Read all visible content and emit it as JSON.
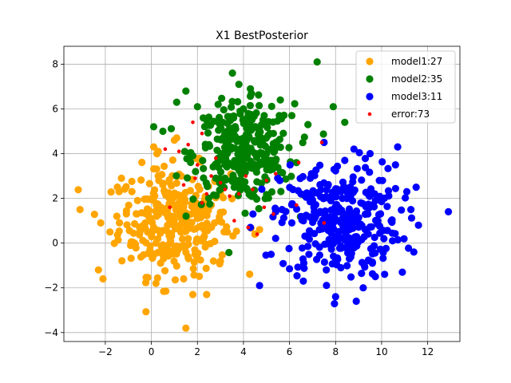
{
  "chart_data": {
    "type": "scatter",
    "title": "X1 BestPosterior",
    "xlabel": "",
    "ylabel": "",
    "xlim": [
      -3.8,
      13.4
    ],
    "ylim": [
      -4.4,
      8.8
    ],
    "x_ticks": [
      -2,
      0,
      2,
      4,
      6,
      8,
      10,
      12
    ],
    "y_ticks": [
      -4,
      -2,
      0,
      2,
      4,
      6,
      8
    ],
    "grid": true,
    "legend_position": "top-right",
    "colors": {
      "model1": "#ffa500",
      "model2": "#008000",
      "model3": "#0000ff",
      "error": "#ff0000"
    },
    "series": [
      {
        "name": "model1:27",
        "color": "#ffa500",
        "marker": "circle",
        "center": [
          1.0,
          1.0
        ],
        "spread": [
          1.2,
          1.2
        ],
        "points": [
          [
            -3.1,
            1.5
          ],
          [
            -2.3,
            -1.2
          ],
          [
            -2.1,
            -1.6
          ],
          [
            -2.2,
            0.9
          ],
          [
            -1.8,
            0.5
          ],
          [
            -1.3,
            2.9
          ],
          [
            0.1,
            4.3
          ],
          [
            0.3,
            4.1
          ],
          [
            1.5,
            -3.8
          ],
          [
            1.8,
            -2.3
          ],
          [
            2.4,
            -2.3
          ],
          [
            1.4,
            -1.6
          ],
          [
            0.2,
            -1.8
          ],
          [
            3.0,
            -0.8
          ],
          [
            2.7,
            -0.8
          ],
          [
            0.5,
            2.6
          ],
          [
            1.1,
            4.7
          ],
          [
            1.0,
            4.6
          ],
          [
            4.5,
            0.4
          ],
          [
            4.7,
            0.6
          ],
          [
            3.3,
            0.5
          ],
          [
            -1.4,
            2.3
          ],
          [
            -1.5,
            1.2
          ],
          [
            -0.5,
            0.5
          ],
          [
            0.3,
            3.0
          ],
          [
            0.7,
            1.5
          ],
          [
            1.2,
            2.1
          ],
          [
            2.0,
            1.1
          ],
          [
            2.3,
            0.3
          ],
          [
            0.4,
            -0.9
          ],
          [
            -0.6,
            1.9
          ],
          [
            1.6,
            0.2
          ],
          [
            0.2,
            0.0
          ],
          [
            2.6,
            1.7
          ],
          [
            1.9,
            -0.5
          ],
          [
            -0.2,
            1.3
          ],
          [
            1.3,
            3.0
          ],
          [
            0.8,
            -0.4
          ],
          [
            2.1,
            2.4
          ],
          [
            -0.9,
            -0.1
          ]
        ]
      },
      {
        "name": "model2:35",
        "color": "#008000",
        "marker": "circle",
        "center": [
          4.0,
          4.0
        ],
        "spread": [
          1.1,
          1.1
        ],
        "points": [
          [
            7.2,
            8.1
          ],
          [
            3.8,
            7.1
          ],
          [
            4.3,
            6.9
          ],
          [
            1.5,
            6.8
          ],
          [
            1.1,
            6.3
          ],
          [
            2.9,
            6.2
          ],
          [
            2.0,
            6.1
          ],
          [
            5.6,
            6.4
          ],
          [
            6.1,
            5.7
          ],
          [
            6.8,
            5.3
          ],
          [
            8.4,
            5.4
          ],
          [
            7.9,
            6.1
          ],
          [
            0.1,
            5.2
          ],
          [
            0.5,
            5.0
          ],
          [
            2.5,
            4.4
          ],
          [
            1.8,
            3.9
          ],
          [
            4.6,
            3.4
          ],
          [
            5.1,
            3.7
          ],
          [
            3.1,
            5.4
          ],
          [
            4.2,
            4.8
          ],
          [
            5.5,
            4.3
          ],
          [
            3.6,
            2.5
          ],
          [
            2.8,
            2.9
          ],
          [
            4.9,
            5.7
          ],
          [
            6.3,
            3.6
          ],
          [
            3.3,
            4.0
          ],
          [
            4.0,
            6.0
          ],
          [
            2.4,
            5.5
          ],
          [
            3.9,
            3.2
          ],
          [
            5.3,
            4.9
          ]
        ]
      },
      {
        "name": "model3:11",
        "color": "#0000ff",
        "marker": "circle",
        "center": [
          8.2,
          1.0
        ],
        "spread": [
          1.3,
          1.3
        ],
        "points": [
          [
            12.9,
            1.4
          ],
          [
            11.5,
            2.5
          ],
          [
            11.6,
            0.8
          ],
          [
            11.4,
            -0.4
          ],
          [
            10.9,
            -1.3
          ],
          [
            10.7,
            4.3
          ],
          [
            10.6,
            3.5
          ],
          [
            9.5,
            4.0
          ],
          [
            8.8,
            4.2
          ],
          [
            7.5,
            4.5
          ],
          [
            8.4,
            3.7
          ],
          [
            4.7,
            -1.9
          ],
          [
            5.2,
            -0.5
          ],
          [
            8.0,
            -2.4
          ],
          [
            8.9,
            -2.6
          ],
          [
            9.2,
            -2.0
          ],
          [
            6.6,
            -1.7
          ],
          [
            10.1,
            0.2
          ],
          [
            9.1,
            1.8
          ],
          [
            7.3,
            0.6
          ],
          [
            6.5,
            2.2
          ],
          [
            8.6,
            -0.7
          ],
          [
            7.0,
            1.9
          ],
          [
            9.9,
            2.8
          ],
          [
            6.1,
            0.9
          ],
          [
            8.1,
            0.1
          ],
          [
            7.6,
            -1.2
          ],
          [
            9.6,
            -0.9
          ],
          [
            6.9,
            2.9
          ],
          [
            8.3,
            2.0
          ],
          [
            4.3,
            0.7
          ],
          [
            5.4,
            1.4
          ]
        ]
      },
      {
        "name": "error:73",
        "color": "#ff0000",
        "marker": "dot",
        "points": [
          [
            1.8,
            5.4
          ],
          [
            0.6,
            4.2
          ],
          [
            1.2,
            4.1
          ],
          [
            2.0,
            3.5
          ],
          [
            2.6,
            3.0
          ],
          [
            3.0,
            2.7
          ],
          [
            3.4,
            2.1
          ],
          [
            2.2,
            1.8
          ],
          [
            4.6,
            0.4
          ],
          [
            4.2,
            0.7
          ],
          [
            3.6,
            1.0
          ],
          [
            0.8,
            1.6
          ],
          [
            1.4,
            2.6
          ],
          [
            2.8,
            3.8
          ],
          [
            3.2,
            2.4
          ],
          [
            4.1,
            3.0
          ],
          [
            5.4,
            3.1
          ],
          [
            5.0,
            2.8
          ],
          [
            6.4,
            3.6
          ],
          [
            7.4,
            4.5
          ],
          [
            7.5,
            0.9
          ],
          [
            5.3,
            1.3
          ],
          [
            6.3,
            1.7
          ],
          [
            4.4,
            2.4
          ],
          [
            2.4,
            2.2
          ],
          [
            1.9,
            2.9
          ],
          [
            3.8,
            2.2
          ],
          [
            4.9,
            1.6
          ],
          [
            1.6,
            4.4
          ],
          [
            2.2,
            4.9
          ]
        ]
      }
    ]
  }
}
